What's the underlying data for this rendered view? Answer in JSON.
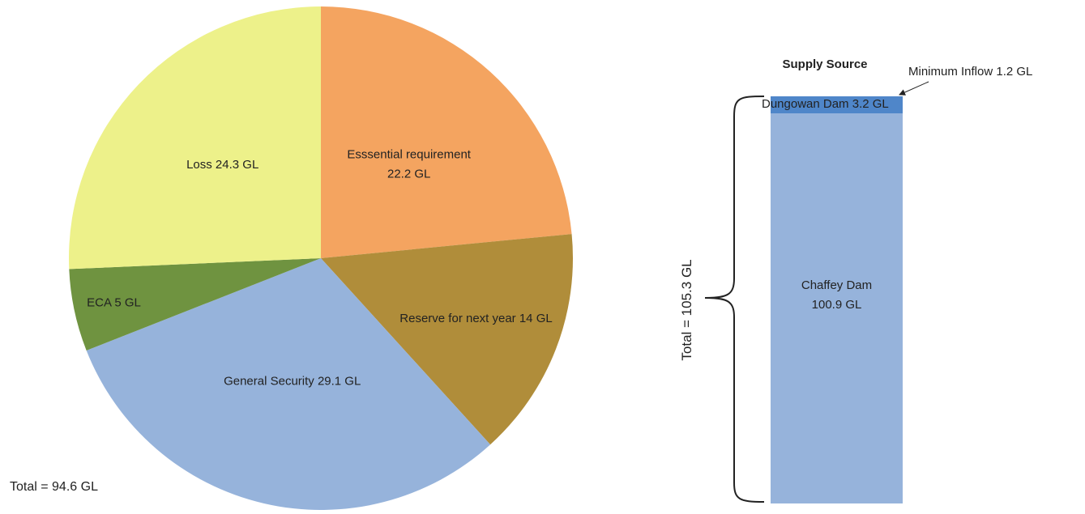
{
  "chart_data": [
    {
      "type": "pie",
      "title": "",
      "slices": [
        {
          "label": "Esssential requirement",
          "value_label": "22.2 GL",
          "value": 22.2,
          "color": "#f4a460"
        },
        {
          "label": "Reserve for next year",
          "value_label": "14 GL",
          "value": 14,
          "color": "#b08d3a"
        },
        {
          "label": "General Security",
          "value_label": "29.1 GL",
          "value": 29.1,
          "color": "#96b3db"
        },
        {
          "label": "ECA",
          "value_label": "5 GL",
          "value": 5,
          "color": "#6f9340"
        },
        {
          "label": "Loss",
          "value_label": "24.3 GL",
          "value": 24.3,
          "color": "#edf18a"
        }
      ],
      "total_label": "Total = 94.6 GL"
    },
    {
      "type": "bar",
      "title": "Supply Source",
      "segments": [
        {
          "label": "Chaffey Dam",
          "value_label": "100.9 GL",
          "value": 100.9,
          "color": "#96b3db"
        },
        {
          "label": "Dungowan Dam",
          "value_label": "3.2 GL",
          "value": 3.2,
          "color": "#4f86c9"
        },
        {
          "label": "Minimum Inflow",
          "value_label": "1.2 GL",
          "value": 1.2,
          "color": "#4f86c9"
        }
      ],
      "total_label": "Total = 105.3 GL"
    }
  ]
}
